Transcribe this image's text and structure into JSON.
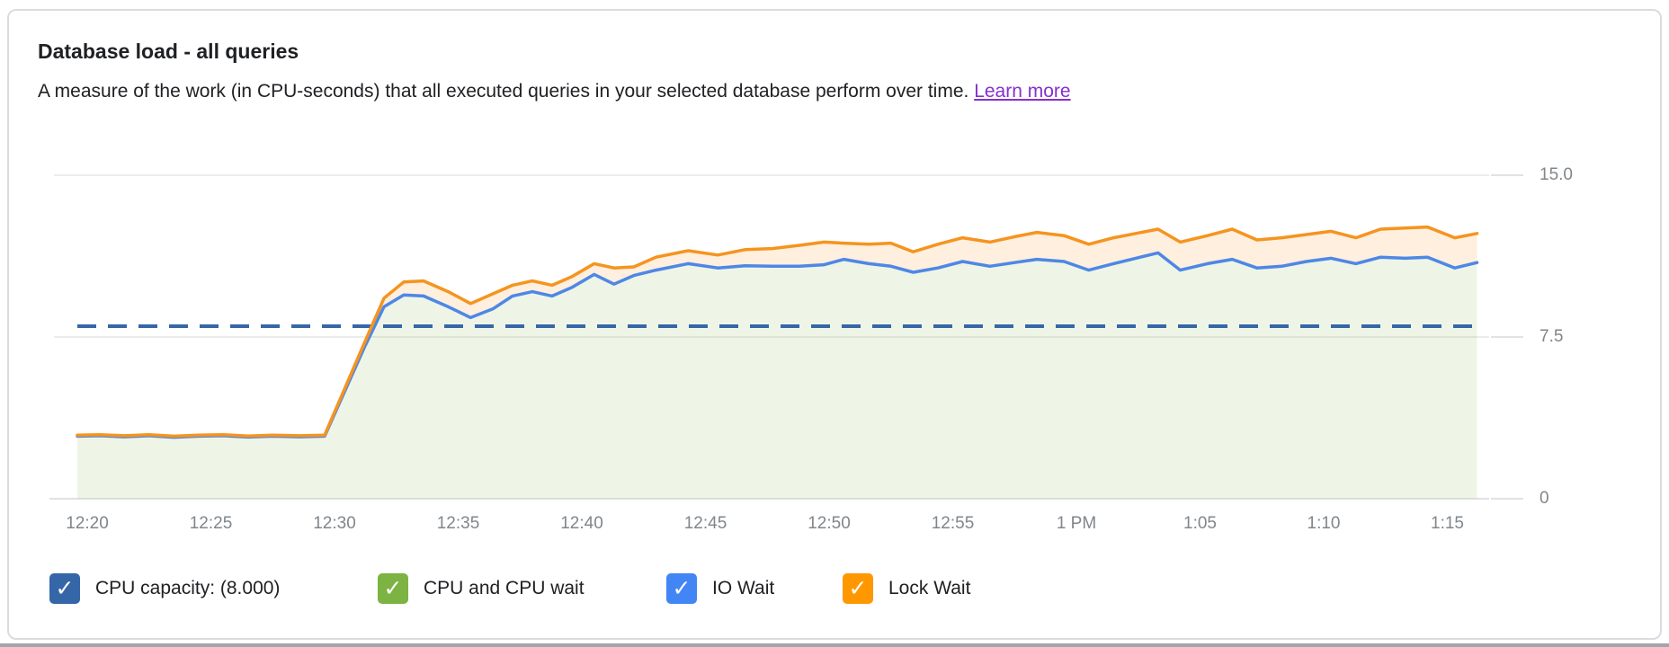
{
  "header": {
    "title": "Database load - all queries",
    "description": "A measure of the work (in CPU-seconds) that all executed queries in your selected database perform over time.",
    "learn_more": "Learn more"
  },
  "colors": {
    "text": "#202124",
    "link": "#8430ce",
    "axis_label": "#80868b",
    "gridline": "#ececec",
    "axis_line": "#e2e2e2",
    "capacity_line": "#3566a8",
    "io_wait_line": "#4e87e5",
    "lock_wait_line": "#f5941f",
    "cpu_area_fill": "rgba(124,179,66,0.13)",
    "lock_area_fill": "rgba(245,148,31,0.15)"
  },
  "legend": [
    {
      "id": "cpu-capacity",
      "label": "CPU capacity: (8.000)",
      "color": "#3566a8",
      "checked": true
    },
    {
      "id": "cpu-and-cpu-wait",
      "label": "CPU and CPU wait",
      "color": "#7cb342",
      "checked": true
    },
    {
      "id": "io-wait",
      "label": "IO Wait",
      "color": "#4285f4",
      "checked": true
    },
    {
      "id": "lock-wait",
      "label": "Lock Wait",
      "color": "#ff9800",
      "checked": true
    }
  ],
  "chart_data": {
    "type": "area",
    "stacked": true,
    "title": "Database load - all queries",
    "grid": "horizontal",
    "legend_position": "bottom",
    "x_ticks": [
      "12:20",
      "12:25",
      "12:30",
      "12:35",
      "12:40",
      "12:45",
      "12:50",
      "12:55",
      "1 PM",
      "1:05",
      "1:10",
      "1:15"
    ],
    "y_ticks": [
      {
        "label": "15.0",
        "value": 15
      },
      {
        "label": "7.5",
        "value": 7.5
      },
      {
        "label": "0",
        "value": 0
      }
    ],
    "ylim": [
      0,
      15
    ],
    "capacity_line": {
      "legend_label": "CPU capacity: (8.000)",
      "value": 8.0,
      "style": "dashed"
    },
    "x_minutes_after_12_20": [
      -0.4,
      0.5,
      1.5,
      2.5,
      3.5,
      4.5,
      5.5,
      6.5,
      7.5,
      8.6,
      9.6,
      11.2,
      12.0,
      12.8,
      13.6,
      14.6,
      15.5,
      16.4,
      17.2,
      18.0,
      18.8,
      19.6,
      20.5,
      21.3,
      22.1,
      23.0,
      24.3,
      25.5,
      26.6,
      27.7,
      28.8,
      29.8,
      30.6,
      31.6,
      32.5,
      33.4,
      34.4,
      35.4,
      36.5,
      37.5,
      38.4,
      39.5,
      40.5,
      41.5,
      42.4,
      43.3,
      44.2,
      45.3,
      46.3,
      47.3,
      48.3,
      49.3,
      50.3,
      51.3,
      52.3,
      53.3,
      54.2,
      55.3,
      56.2
    ],
    "series": [
      {
        "name": "CPU + CPU wait + IO Wait (blue line, green fill below)",
        "values": [
          2.9,
          2.92,
          2.87,
          2.92,
          2.85,
          2.9,
          2.92,
          2.86,
          2.9,
          2.87,
          2.9,
          7.0,
          8.9,
          9.45,
          9.4,
          8.9,
          8.4,
          8.8,
          9.4,
          9.6,
          9.4,
          9.8,
          10.4,
          9.95,
          10.35,
          10.6,
          10.9,
          10.7,
          10.8,
          10.78,
          10.78,
          10.85,
          11.1,
          10.9,
          10.78,
          10.5,
          10.7,
          11.0,
          10.78,
          10.95,
          11.1,
          11.0,
          10.6,
          10.9,
          11.15,
          11.4,
          10.6,
          10.9,
          11.1,
          10.7,
          10.78,
          11.0,
          11.15,
          10.9,
          11.2,
          11.15,
          11.2,
          10.7,
          10.95
        ]
      },
      {
        "name": "Total load incl. Lock Wait (orange line, peach fill between)",
        "values": [
          2.95,
          2.97,
          2.92,
          2.97,
          2.9,
          2.95,
          2.97,
          2.91,
          2.95,
          2.92,
          2.95,
          7.2,
          9.3,
          10.05,
          10.1,
          9.6,
          9.05,
          9.5,
          9.9,
          10.1,
          9.9,
          10.3,
          10.9,
          10.7,
          10.75,
          11.2,
          11.5,
          11.3,
          11.55,
          11.6,
          11.75,
          11.9,
          11.85,
          11.8,
          11.85,
          11.45,
          11.8,
          12.1,
          11.9,
          12.15,
          12.35,
          12.2,
          11.8,
          12.1,
          12.3,
          12.5,
          11.9,
          12.2,
          12.5,
          12.0,
          12.1,
          12.25,
          12.4,
          12.1,
          12.5,
          12.55,
          12.6,
          12.1,
          12.3
        ]
      }
    ]
  }
}
